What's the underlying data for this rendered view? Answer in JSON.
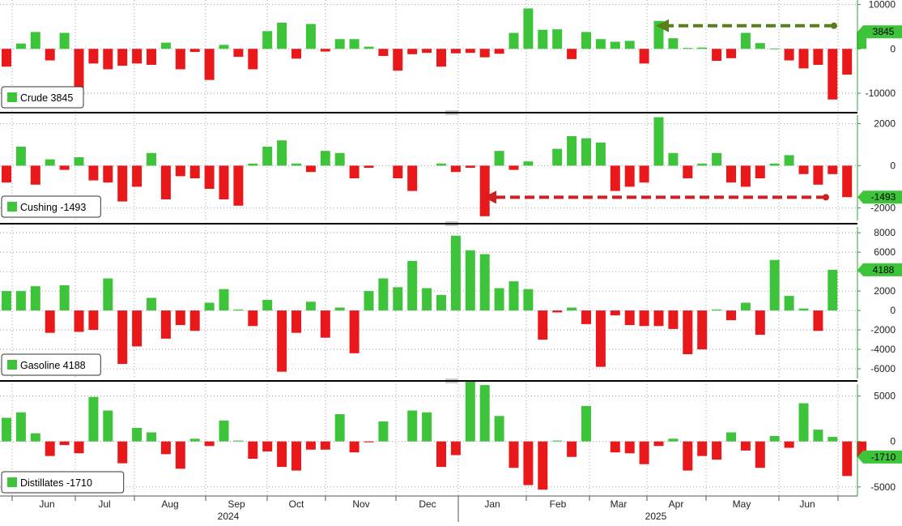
{
  "colors": {
    "positive": "#3ec43a",
    "negative": "#e8181b",
    "grid": "#8c8c8c",
    "axis": "#2fa52a",
    "arrow_crude": "#5a7f1a",
    "arrow_cushing": "#d11e1e",
    "last_positive_badge": "#3ec43a",
    "last_negative_badge": "#3ec43a"
  },
  "chart_data": [
    {
      "type": "bar",
      "series": [
        {
          "name": "Crude",
          "legend_value": "3845",
          "values": [
            -4000,
            1200,
            3800,
            -2600,
            3600,
            -9600,
            -3300,
            -4600,
            -3800,
            -3300,
            -3600,
            1400,
            -4600,
            -700,
            -7000,
            900,
            -1800,
            -4600,
            4000,
            5900,
            -2200,
            5600,
            -600,
            2200,
            2200,
            500,
            -1600,
            -4900,
            -1200,
            -900,
            -4000,
            -1000,
            -900,
            -1900,
            -1100,
            3600,
            9100,
            4300,
            4400,
            -2300,
            3800,
            2200,
            1600,
            1800,
            -3300,
            6300,
            2400,
            200,
            300,
            -2700,
            -2100,
            3600,
            1300,
            100,
            -2600,
            -4400,
            -3600,
            -11400,
            -5800,
            3845
          ]
        }
      ],
      "ylim": [
        -14000,
        11000
      ],
      "yticks": [
        "10000",
        "0",
        "-10000"
      ],
      "last_label": "3845"
    },
    {
      "type": "bar",
      "series": [
        {
          "name": "Cushing",
          "legend_value": "-1493",
          "values": [
            -800,
            900,
            -900,
            300,
            -200,
            400,
            -700,
            -800,
            -1700,
            -1000,
            600,
            -1600,
            -500,
            -600,
            -1100,
            -1600,
            -1900,
            100,
            900,
            1200,
            100,
            -300,
            700,
            600,
            -600,
            -100,
            0,
            -600,
            -1200,
            0,
            100,
            -300,
            -100,
            -2400,
            700,
            -200,
            200,
            0,
            800,
            1400,
            1300,
            1100,
            -1200,
            -1000,
            -800,
            2300,
            600,
            -600,
            100,
            600,
            -800,
            -1000,
            -600,
            100,
            500,
            -400,
            -900,
            -400,
            -1493,
            0
          ]
        }
      ],
      "ylim": [
        -2600,
        2400
      ],
      "yticks": [
        "2000",
        "0",
        "-2000"
      ],
      "last_label": "-1493"
    },
    {
      "type": "bar",
      "series": [
        {
          "name": "Gasoline",
          "legend_value": "4188",
          "values": [
            2000,
            2000,
            2500,
            -2300,
            2600,
            -2200,
            -2000,
            3300,
            -5500,
            -3700,
            1300,
            -2900,
            -1500,
            -2100,
            800,
            2200,
            100,
            -1600,
            1100,
            -6300,
            -2300,
            900,
            -2800,
            300,
            -4400,
            2000,
            3300,
            2400,
            5100,
            2300,
            1600,
            7700,
            6200,
            5800,
            2300,
            3000,
            2200,
            -3000,
            -200,
            300,
            -1400,
            -5800,
            -500,
            -1500,
            -1600,
            -1600,
            -1900,
            -4500,
            -4000,
            100,
            -1000,
            800,
            -2500,
            5200,
            1500,
            200,
            -2100,
            4188,
            0,
            0
          ]
        }
      ],
      "ylim": [
        -7000,
        8600
      ],
      "yticks": [
        "8000",
        "6000",
        "4000",
        "2000",
        "0",
        "-2000",
        "-4000",
        "-6000"
      ],
      "last_label": "4188"
    },
    {
      "type": "bar",
      "series": [
        {
          "name": "Distillates",
          "legend_value": "-1710",
          "values": [
            2600,
            3200,
            900,
            -1600,
            -400,
            -1300,
            4900,
            3400,
            -2400,
            1500,
            1000,
            -1400,
            -3000,
            300,
            -500,
            2300,
            100,
            -1900,
            -1100,
            -2800,
            -3200,
            -900,
            -900,
            3000,
            -1200,
            -100,
            2200,
            0,
            3400,
            3200,
            -2800,
            -1500,
            6600,
            6200,
            2800,
            -2900,
            -4800,
            -5300,
            100,
            -1700,
            3900,
            0,
            -1200,
            -1300,
            -2500,
            -500,
            300,
            -3200,
            -1600,
            -2000,
            1000,
            -1000,
            -2900,
            600,
            -700,
            4200,
            1300,
            500,
            -3800,
            -1710
          ]
        }
      ],
      "ylim": [
        -6000,
        6300
      ],
      "yticks": [
        "5000",
        "0",
        "-5000"
      ],
      "last_label": "-1710"
    }
  ],
  "x_axis": {
    "months": [
      "Jun",
      "Jul",
      "Aug",
      "Sep",
      "Oct",
      "Nov",
      "Dec",
      "Jan",
      "Feb",
      "Mar",
      "Apr",
      "May",
      "Jun"
    ],
    "years": [
      "2024",
      "2025"
    ]
  }
}
